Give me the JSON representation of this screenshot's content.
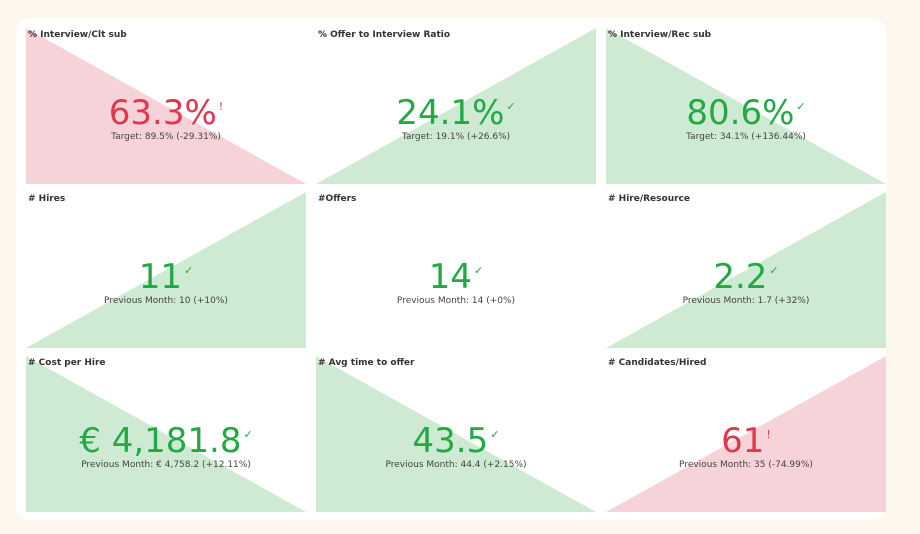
{
  "colors": {
    "good_text": "#22a845",
    "bad_text": "#e0364f",
    "good_fill": "#cfead3",
    "bad_fill": "#f6d3d8"
  },
  "cards": [
    {
      "title": "% Interview/Clt sub",
      "value": "63.3%",
      "mark": "!",
      "status": "bad",
      "triangle": "top-left",
      "sub": "Target: 89.5% (-29.31%)"
    },
    {
      "title": "% Offer to Interview Ratio",
      "value": "24.1%",
      "mark": "✓",
      "status": "good",
      "triangle": "bottom-right",
      "sub": "Target: 19.1% (+26.6%)"
    },
    {
      "title": "% Interview/Rec sub",
      "value": "80.6%",
      "mark": "✓",
      "status": "good",
      "triangle": "top-left",
      "sub": "Target: 34.1% (+136.44%)"
    },
    {
      "title": "# Hires",
      "value": "11",
      "mark": "✓",
      "status": "good",
      "triangle": "bottom-right",
      "sub": "Previous Month: 10 (+10%)"
    },
    {
      "title": "#Offers",
      "value": "14",
      "mark": "✓",
      "status": "good",
      "triangle": "none",
      "sub": "Previous Month: 14 (+0%)"
    },
    {
      "title": "# Hire/Resource",
      "value": "2.2",
      "mark": "✓",
      "status": "good",
      "triangle": "bottom-right",
      "sub": "Previous Month: 1.7 (+32%)"
    },
    {
      "title": "# Cost per Hire",
      "value": "€ 4,181.8",
      "mark": "✓",
      "status": "good",
      "triangle": "top-left",
      "sub": "Previous Month: € 4,758.2 (+12.11%)"
    },
    {
      "title": "# Avg time to offer",
      "value": "43.5",
      "mark": "✓",
      "status": "good",
      "triangle": "top-left",
      "sub": "Previous Month: 44.4 (+2.15%)"
    },
    {
      "title": "# Candidates/Hired",
      "value": "61",
      "mark": "!",
      "status": "bad",
      "triangle": "bottom-right",
      "sub": "Previous Month: 35 (-74.99%)"
    }
  ]
}
